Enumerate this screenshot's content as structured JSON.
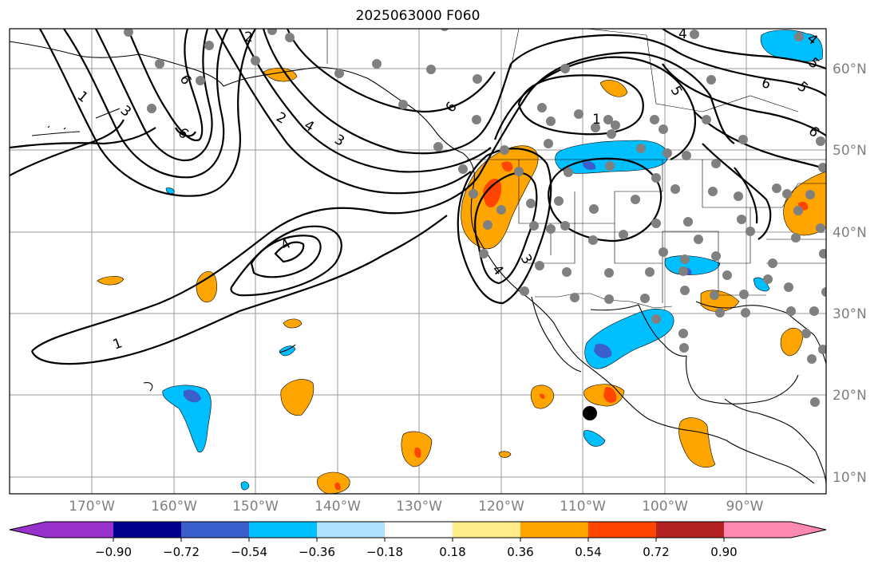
{
  "title": "2025063000 F060",
  "longitude_labels": [
    "170°W",
    "160°W",
    "150°W",
    "140°W",
    "130°W",
    "120°W",
    "110°W",
    "100°W",
    "90°W"
  ],
  "latitude_labels": [
    "60°N",
    "50°N",
    "40°N",
    "30°N",
    "20°N",
    "10°N"
  ],
  "colorbar": {
    "ticks": [
      "−0.90",
      "−0.72",
      "−0.54",
      "−0.36",
      "−0.18",
      "0.18",
      "0.36",
      "0.54",
      "0.72",
      "0.90"
    ],
    "colors": [
      "#9932cc",
      "#00008b",
      "#3a5fcd",
      "#00bfff",
      "#b0e2ff",
      "#ffffff",
      "#ffec8b",
      "#ffa500",
      "#ff4500",
      "#b22222",
      "#ff88b0"
    ]
  },
  "contour_labels": [
    "1",
    "1",
    "1",
    "2",
    "2",
    "3",
    "3",
    "3",
    "4",
    "4",
    "4",
    "4",
    "5",
    "5",
    "6",
    "6",
    "6",
    "6",
    "4",
    "5",
    "6"
  ],
  "marker": {
    "color": "#000000"
  },
  "station_color": "#808080"
}
